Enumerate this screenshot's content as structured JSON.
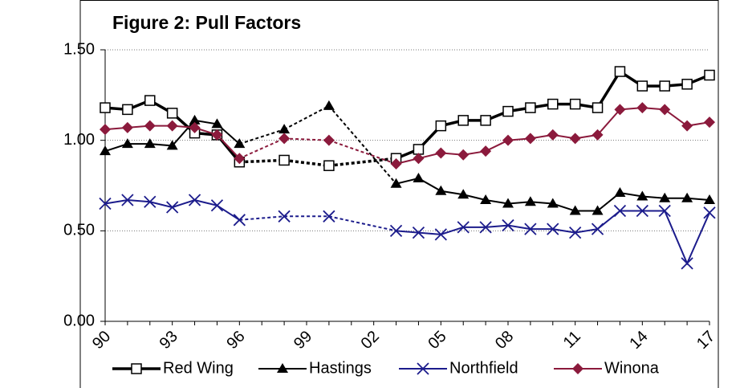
{
  "chart_data": {
    "type": "line",
    "title": "Figure 2: Pull Factors",
    "categories": [
      "90",
      null,
      null,
      "93",
      null,
      null,
      "96",
      null,
      null,
      "99",
      null,
      null,
      "02",
      null,
      null,
      "05",
      null,
      null,
      "08",
      null,
      null,
      "11",
      null,
      null,
      "14",
      null,
      null,
      "17"
    ],
    "ylim": [
      0,
      1.5
    ],
    "yticks": [
      {
        "value": 0,
        "label": "0.00"
      },
      {
        "value": 0.5,
        "label": "0.50"
      },
      {
        "value": 1.0,
        "label": "1.00"
      },
      {
        "value": 1.5,
        "label": "1.50"
      }
    ],
    "grid": true,
    "legend": "bottom",
    "series": [
      {
        "name": "Red Wing",
        "color": "#000000",
        "marker": "square",
        "line_width": 3.5,
        "values": [
          1.18,
          1.17,
          1.22,
          1.15,
          1.04,
          1.03,
          0.88,
          null,
          0.89,
          null,
          0.86,
          null,
          null,
          0.9,
          0.95,
          1.08,
          1.11,
          1.11,
          1.16,
          1.18,
          1.2,
          1.2,
          1.18,
          1.38,
          1.3,
          1.3,
          1.31,
          1.36
        ]
      },
      {
        "name": "Hastings",
        "color": "#000000",
        "marker": "triangle",
        "line_width": 2,
        "values": [
          0.94,
          0.98,
          0.98,
          0.97,
          1.11,
          1.09,
          0.98,
          null,
          1.06,
          null,
          1.19,
          null,
          null,
          0.76,
          0.79,
          0.72,
          0.7,
          0.67,
          0.65,
          0.66,
          0.65,
          0.61,
          0.61,
          0.71,
          0.69,
          0.68,
          0.68,
          0.67
        ]
      },
      {
        "name": "Northfield",
        "color": "#1c1c8c",
        "marker": "x",
        "line_width": 2,
        "values": [
          0.65,
          0.67,
          0.66,
          0.63,
          0.67,
          0.64,
          0.56,
          null,
          0.58,
          null,
          0.58,
          null,
          null,
          0.5,
          0.49,
          0.48,
          0.52,
          0.52,
          0.53,
          0.51,
          0.51,
          0.49,
          0.51,
          0.61,
          0.61,
          0.61,
          0.32,
          0.6
        ]
      },
      {
        "name": "Winona",
        "color": "#8b1a3c",
        "marker": "diamond",
        "line_width": 2,
        "values": [
          1.06,
          1.07,
          1.08,
          1.08,
          1.07,
          1.03,
          0.9,
          null,
          1.01,
          null,
          1.0,
          null,
          null,
          0.87,
          0.9,
          0.93,
          0.92,
          0.94,
          1.0,
          1.01,
          1.03,
          1.01,
          1.03,
          1.17,
          1.18,
          1.17,
          1.08,
          1.1
        ]
      }
    ]
  }
}
